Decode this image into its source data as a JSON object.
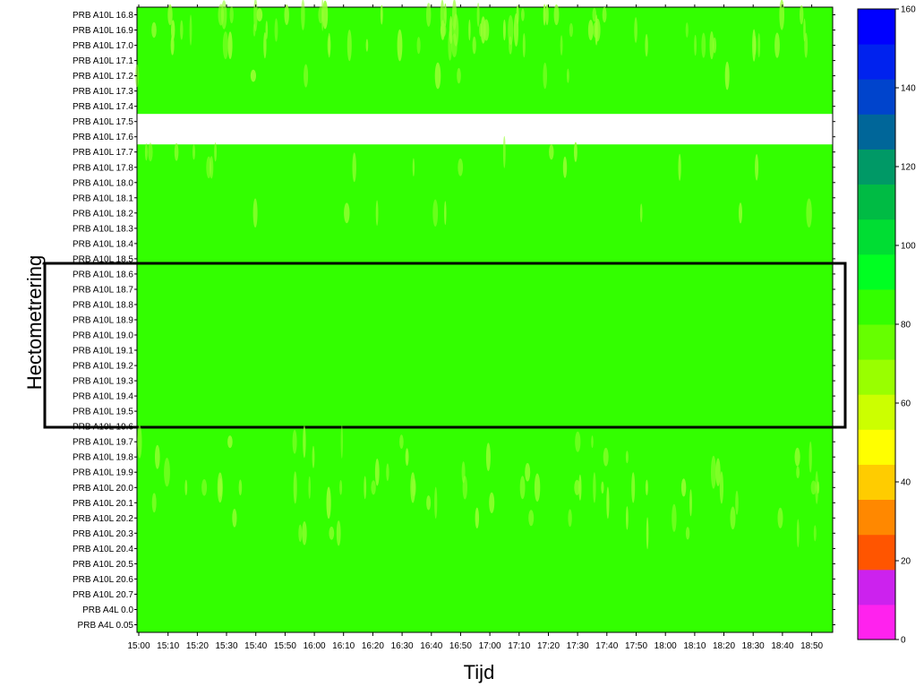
{
  "chart_data": {
    "type": "heatmap",
    "xlabel": "Tijd",
    "ylabel": "Hectometrering",
    "x_ticks": [
      "15:00",
      "15:10",
      "15:20",
      "15:30",
      "15:40",
      "15:50",
      "16:00",
      "16:10",
      "16:20",
      "16:30",
      "16:40",
      "16:50",
      "17:00",
      "17:10",
      "17:20",
      "17:30",
      "17:40",
      "17:50",
      "18:00",
      "18:10",
      "18:20",
      "18:30",
      "18:40",
      "18:50"
    ],
    "y_categories": [
      "PRB A10L 16.8",
      "PRB A10L 16.9",
      "PRB A10L 17.0",
      "PRB A10L 17.1",
      "PRB A10L 17.2",
      "PRB A10L 17.3",
      "PRB A10L 17.4",
      "PRB A10L 17.5",
      "PRB A10L 17.6",
      "PRB A10L 17.7",
      "PRB A10L 17.8",
      "PRB A10L 18.0",
      "PRB A10L 18.1",
      "PRB A10L 18.2",
      "PRB A10L 18.3",
      "PRB A10L 18.4",
      "PRB A10L 18.5",
      "PRB A10L 18.6",
      "PRB A10L 18.7",
      "PRB A10L 18.8",
      "PRB A10L 18.9",
      "PRB A10L 19.0",
      "PRB A10L 19.1",
      "PRB A10L 19.2",
      "PRB A10L 19.3",
      "PRB A10L 19.4",
      "PRB A10L 19.5",
      "PRB A10L 19.6",
      "PRB A10L 19.7",
      "PRB A10L 19.8",
      "PRB A10L 19.9",
      "PRB A10L 20.0",
      "PRB A10L 20.1",
      "PRB A10L 20.2",
      "PRB A10L 20.3",
      "PRB A10L 20.4",
      "PRB A10L 20.5",
      "PRB A10L 20.6",
      "PRB A10L 20.7",
      "PRB A4L 0.0",
      "PRB A4L 0.05"
    ],
    "dominant_value": 85,
    "no_data_rows": [
      "PRB A10L 17.5"
    ],
    "colorbar": {
      "range": [
        0,
        160
      ],
      "ticks": [
        0,
        20,
        40,
        60,
        80,
        100,
        120,
        140,
        160
      ],
      "colors": [
        "#ff22ee",
        "#cc22ee",
        "#ff5500",
        "#ff8800",
        "#ffcc00",
        "#ffff00",
        "#ccff00",
        "#99ff00",
        "#66ff00",
        "#33ff00",
        "#00ff22",
        "#00dd33",
        "#00bb44",
        "#009966",
        "#006699",
        "#0044cc",
        "#0022ee",
        "#0000ff"
      ]
    },
    "highlight_box": {
      "from": "PRB A10L 18.6",
      "to": "PRB A10L 19.5"
    },
    "legend": "right"
  }
}
